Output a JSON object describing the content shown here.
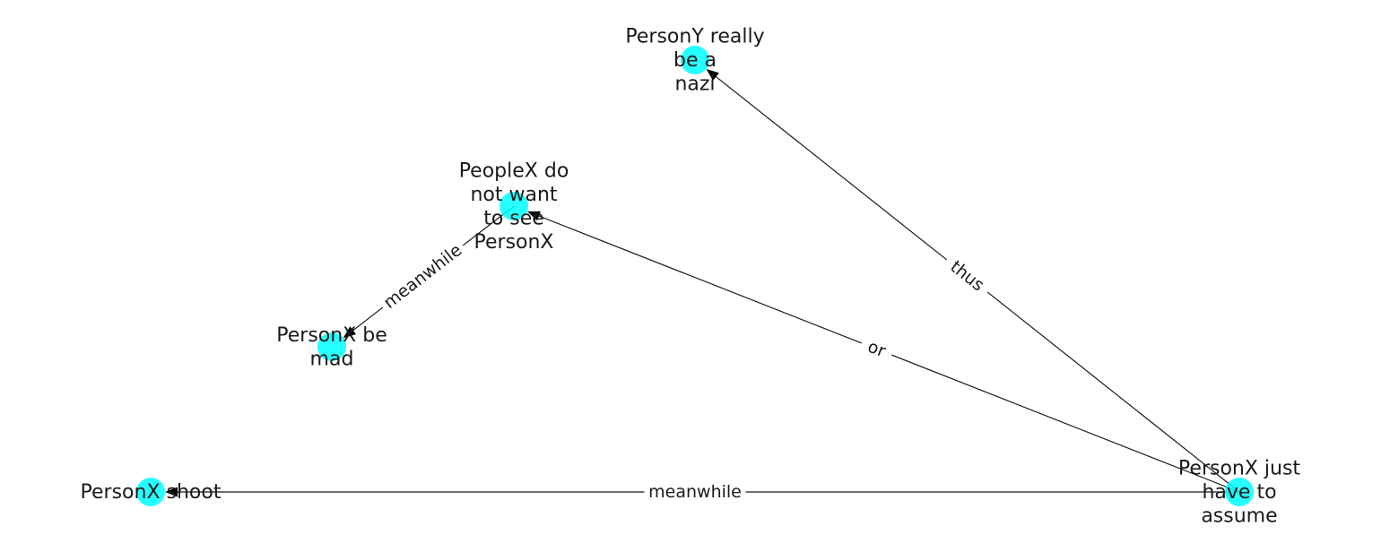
{
  "graph": {
    "node_color": "#00ffff",
    "edge_color": "#1a1a1a",
    "nodes": [
      {
        "id": "n_nazi",
        "lines": [
          "PersonY really",
          "be a",
          "nazi"
        ]
      },
      {
        "id": "n_people",
        "lines": [
          "PeopleX do",
          "not want",
          "to see",
          "PersonX"
        ]
      },
      {
        "id": "n_mad",
        "lines": [
          "PersonX be",
          "mad"
        ]
      },
      {
        "id": "n_shoot",
        "lines": [
          "PersonX shoot"
        ]
      },
      {
        "id": "n_assume",
        "lines": [
          "PersonX just",
          "have to",
          "assume"
        ]
      }
    ],
    "edges": [
      {
        "source": "n_assume",
        "target": "n_nazi",
        "label": "thus"
      },
      {
        "source": "n_assume",
        "target": "n_people",
        "label": "or"
      },
      {
        "source": "n_people",
        "target": "n_mad",
        "label": "meanwhile"
      },
      {
        "source": "n_assume",
        "target": "n_shoot",
        "label": "meanwhile"
      }
    ]
  }
}
